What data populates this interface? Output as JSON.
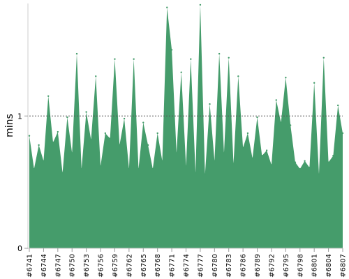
{
  "chart_data": {
    "type": "area",
    "ylabel": "mins",
    "ylim": [
      0,
      1.85
    ],
    "yticks": [
      "0",
      "1"
    ],
    "reference_line": 1,
    "color": "#459C6B",
    "grid": false,
    "categories": [
      "#6741",
      "#6742",
      "#6743",
      "#6744",
      "#6745",
      "#6746",
      "#6747",
      "#6748",
      "#6749",
      "#6750",
      "#6751",
      "#6752",
      "#6753",
      "#6754",
      "#6755",
      "#6756",
      "#6757",
      "#6758",
      "#6759",
      "#6760",
      "#6761",
      "#6762",
      "#6763",
      "#6764",
      "#6765",
      "#6766",
      "#6767",
      "#6768",
      "#6769",
      "#6770",
      "#6771",
      "#6772",
      "#6773",
      "#6774",
      "#6775",
      "#6776",
      "#6777",
      "#6778",
      "#6779",
      "#6780",
      "#6781",
      "#6782",
      "#6783",
      "#6784",
      "#6785",
      "#6786",
      "#6787",
      "#6788",
      "#6789",
      "#6790",
      "#6791",
      "#6792",
      "#6793",
      "#6794",
      "#6795",
      "#6796",
      "#6797",
      "#6798",
      "#6799",
      "#6800",
      "#6801",
      "#6802",
      "#6803",
      "#6804",
      "#6805",
      "#6806",
      "#6807"
    ],
    "x_tick_labels": [
      "#6741",
      "#6744",
      "#6747",
      "#6750",
      "#6753",
      "#6756",
      "#6759",
      "#6762",
      "#6765",
      "#6768",
      "#6771",
      "#6774",
      "#6777",
      "#6780",
      "#6783",
      "#6786",
      "#6789",
      "#6792",
      "#6795",
      "#6798",
      "#6801",
      "#6804",
      "#6807"
    ],
    "values": [
      0.85,
      0.6,
      0.78,
      0.66,
      1.15,
      0.8,
      0.88,
      0.57,
      0.99,
      0.72,
      1.47,
      0.6,
      1.03,
      0.82,
      1.3,
      0.62,
      0.87,
      0.83,
      1.43,
      0.78,
      0.98,
      0.6,
      1.43,
      0.6,
      0.95,
      0.78,
      0.6,
      0.87,
      0.66,
      1.82,
      1.5,
      0.72,
      1.33,
      0.62,
      1.43,
      0.57,
      1.84,
      0.56,
      1.09,
      0.66,
      1.47,
      0.72,
      1.44,
      0.64,
      1.3,
      0.76,
      0.87,
      0.68,
      0.99,
      0.7,
      0.74,
      0.63,
      1.12,
      0.95,
      1.29,
      0.93,
      0.65,
      0.6,
      0.66,
      0.61,
      1.25,
      0.56,
      1.44,
      0.65,
      0.7,
      1.08,
      0.87
    ]
  }
}
